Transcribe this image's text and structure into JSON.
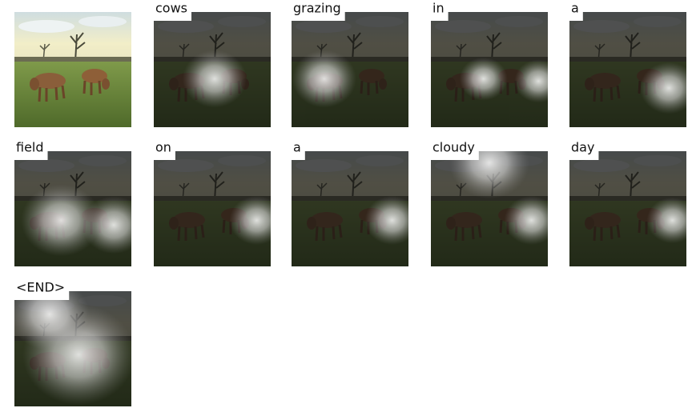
{
  "words": [
    "cows",
    "grazing",
    "in",
    "a",
    "field",
    "on",
    "a",
    "cloudy",
    "day",
    "<END>"
  ]
}
